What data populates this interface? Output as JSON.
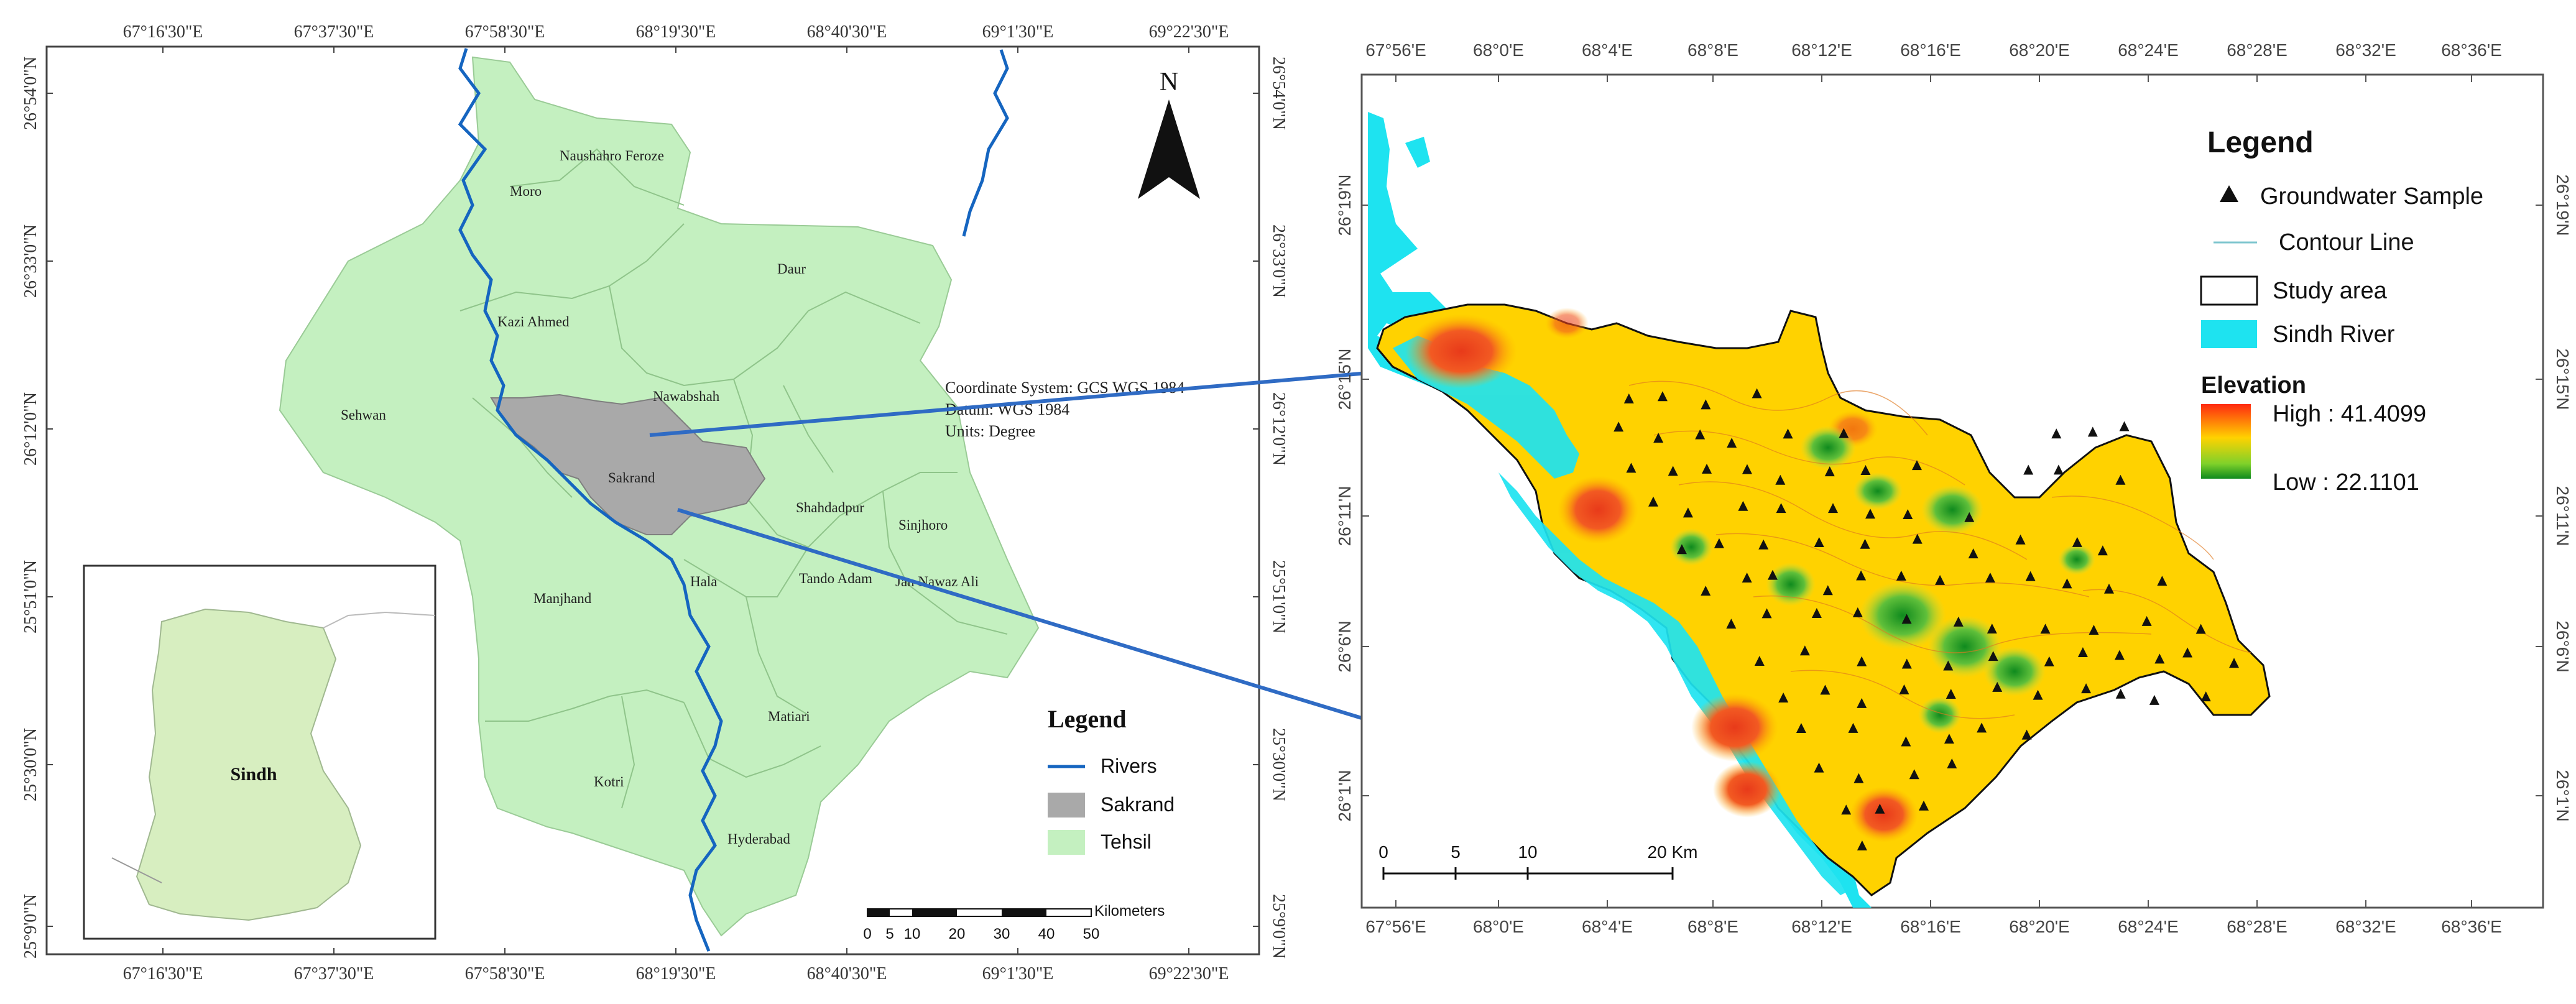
{
  "left_map": {
    "top_ticks": [
      "67°16'30\"E",
      "67°37'30\"E",
      "67°58'30\"E",
      "68°19'30\"E",
      "68°40'30\"E",
      "69°1'30\"E",
      "69°22'30\"E"
    ],
    "bottom_ticks": [
      "67°16'30\"E",
      "67°37'30\"E",
      "67°58'30\"E",
      "68°19'30\"E",
      "68°40'30\"E",
      "69°1'30\"E",
      "69°22'30\"E"
    ],
    "left_ticks": [
      "26°54'0\"N",
      "26°33'0\"N",
      "26°12'0\"N",
      "25°51'0\"N",
      "25°30'0\"N",
      "25°9'0\"N"
    ],
    "right_ticks": [
      "26°54'0\"N",
      "26°33'0\"N",
      "26°12'0\"N",
      "25°51'0\"N",
      "25°30'0\"N",
      "25°9'0\"N"
    ],
    "tehsils": [
      "Naushahro Feroze",
      "Moro",
      "Kazi Ahmed",
      "Daur",
      "Nawabshah",
      "Sehwan",
      "Sakrand",
      "Shahdadpur",
      "Sinjhoro",
      "Hala",
      "Manjhand",
      "Tando Adam",
      "Jan Nawaz Ali",
      "Matiari",
      "Kotri",
      "Hyderabad"
    ],
    "north_label": "N",
    "inset_label": "Sindh",
    "coord_info": [
      "Coordinate System: GCS WGS 1984",
      "Datum: WGS 1984",
      "Units: Degree"
    ],
    "legend": {
      "title": "Legend",
      "items": [
        {
          "label": "Rivers",
          "color": "#1565c0"
        },
        {
          "label": "Sakrand",
          "color": "#a9a9a9"
        },
        {
          "label": "Tehsil",
          "color": "#c4f0c0"
        }
      ]
    },
    "scale": {
      "unit": "Kilometers",
      "labels": [
        "0",
        "5",
        "10",
        "20",
        "30",
        "40",
        "50"
      ]
    }
  },
  "right_map": {
    "top_ticks": [
      "67°56'E",
      "68°0'E",
      "68°4'E",
      "68°8'E",
      "68°12'E",
      "68°16'E",
      "68°20'E",
      "68°24'E",
      "68°28'E",
      "68°32'E",
      "68°36'E"
    ],
    "bottom_ticks": [
      "67°56'E",
      "68°0'E",
      "68°4'E",
      "68°8'E",
      "68°12'E",
      "68°16'E",
      "68°20'E",
      "68°24'E",
      "68°28'E",
      "68°32'E",
      "68°36'E"
    ],
    "left_ticks": [
      "26°19'N",
      "26°15'N",
      "26°11'N",
      "26°6'N",
      "26°1'N"
    ],
    "right_ticks": [
      "26°19'N",
      "26°15'N",
      "26°11'N",
      "26°6'N",
      "26°1'N"
    ],
    "legend": {
      "title": "Legend",
      "items": [
        {
          "label": "Groundwater Sample"
        },
        {
          "label": "Contour Line",
          "color": "#7fc6cf"
        },
        {
          "label": "Study area",
          "color": "#000000"
        },
        {
          "label": "Sindh River",
          "color": "#1ee3f0"
        }
      ],
      "elevation_title": "Elevation",
      "high_label": "High : 41.4099",
      "low_label": "Low : 22.1101"
    },
    "scale": {
      "labels": [
        "0",
        "5",
        "10",
        "20 Km"
      ]
    }
  },
  "colors": {
    "tehsil_fill": "#c4f0c0",
    "sakrand_fill": "#a9a9a9",
    "river": "#1565c0",
    "sindh_river": "#1ee3f0",
    "elev_high": "#ff3b1a",
    "elev_mid": "#ffd200",
    "elev_low": "#1a9a1a",
    "connector": "#2f6bc4"
  }
}
